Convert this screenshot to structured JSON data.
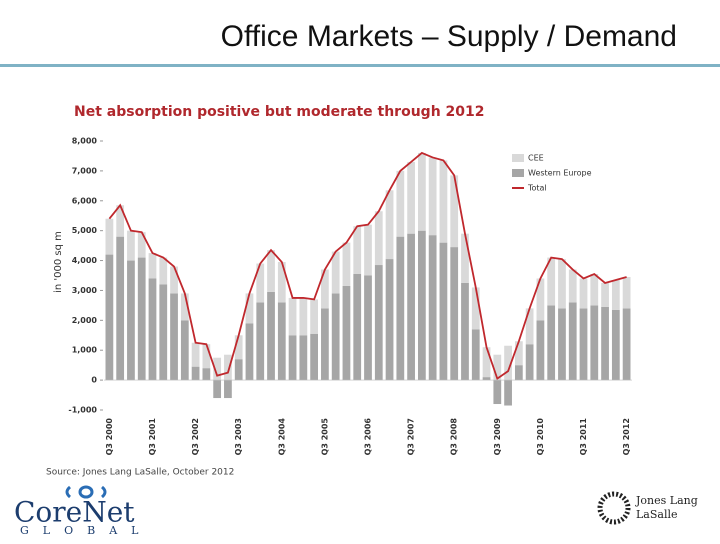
{
  "slide": {
    "title": "Office Markets – Supply / Demand",
    "source": "Source: Jones Lang LaSalle, October 2012",
    "logo_left": "CoreNet",
    "logo_left_sub": "GLOBAL",
    "logo_right_1": "Jones Lang",
    "logo_right_2": "LaSalle"
  },
  "chart_data": {
    "type": "bar",
    "stacked": true,
    "title": "Net absorption positive but moderate through 2012",
    "y_label": "in '000 sq m",
    "categories": [
      "Q3 2000",
      null,
      null,
      null,
      "Q3 2001",
      null,
      null,
      null,
      "Q3 2002",
      null,
      null,
      null,
      "Q3 2003",
      null,
      null,
      null,
      "Q3 2004",
      null,
      null,
      null,
      "Q3 2005",
      null,
      null,
      null,
      "Q3 2006",
      null,
      null,
      null,
      "Q3 2007",
      null,
      null,
      null,
      "Q3 2008",
      null,
      null,
      null,
      "Q3 2009",
      null,
      null,
      null,
      "Q3 2010",
      null,
      null,
      null,
      "Q3 2011",
      null,
      null,
      null,
      "Q3 2012"
    ],
    "series": [
      {
        "name": "Western Europe",
        "type": "bar",
        "color": "#a6a6a6",
        "values": [
          4200,
          4800,
          4000,
          4100,
          3400,
          3200,
          2900,
          2000,
          450,
          400,
          -600,
          -600,
          700,
          1900,
          2600,
          2950,
          2600,
          1500,
          1500,
          1550,
          2400,
          2900,
          3150,
          3550,
          3500,
          3850,
          4050,
          4800,
          4900,
          5000,
          4850,
          4600,
          4450,
          3250,
          1700,
          100,
          -800,
          -850,
          500,
          1200,
          2000,
          2500,
          2400,
          2600,
          2400,
          2500,
          2450,
          2350,
          2400
        ]
      },
      {
        "name": "CEE",
        "type": "bar",
        "color": "#d9d9d9",
        "values": [
          1200,
          1050,
          1000,
          850,
          850,
          900,
          900,
          900,
          800,
          800,
          750,
          850,
          800,
          1000,
          1300,
          1400,
          1350,
          1250,
          1250,
          1150,
          1300,
          1400,
          1450,
          1600,
          1700,
          1800,
          2300,
          2200,
          2400,
          2600,
          2600,
          2750,
          2400,
          1650,
          1400,
          1000,
          850,
          1150,
          800,
          1200,
          1400,
          1600,
          1650,
          1100,
          1000,
          1050,
          800,
          1000,
          1050
        ]
      },
      {
        "name": "Total",
        "type": "line",
        "color": "#c0282d",
        "values": [
          5400,
          5850,
          5000,
          4950,
          4250,
          4100,
          3800,
          2900,
          1250,
          1200,
          150,
          250,
          1500,
          2900,
          3900,
          4350,
          3950,
          2750,
          2750,
          2700,
          3700,
          4300,
          4600,
          5150,
          5200,
          5650,
          6350,
          7000,
          7300,
          7600,
          7450,
          7350,
          6850,
          4900,
          3100,
          1100,
          50,
          300,
          1300,
          2400,
          3400,
          4100,
          4050,
          3700,
          3400,
          3550,
          3250,
          3350,
          3450
        ]
      }
    ],
    "legend_order": [
      1,
      0,
      2
    ],
    "legend": "top-right",
    "ylim": [
      -1000,
      8000
    ],
    "yticks": [
      {
        "value": -1000,
        "label": "-1,000"
      },
      0,
      {
        "value": 1000,
        "label": "1,000"
      },
      {
        "value": 2000,
        "label": "2,000"
      },
      {
        "value": 3000,
        "label": "3,000"
      },
      {
        "value": 4000,
        "label": "4,000"
      },
      {
        "value": 5000,
        "label": "5,000"
      },
      {
        "value": 6000,
        "label": "6,000"
      },
      {
        "value": 7000,
        "label": "7,000"
      },
      {
        "value": 8000,
        "label": "8,000"
      }
    ],
    "grid": false
  }
}
